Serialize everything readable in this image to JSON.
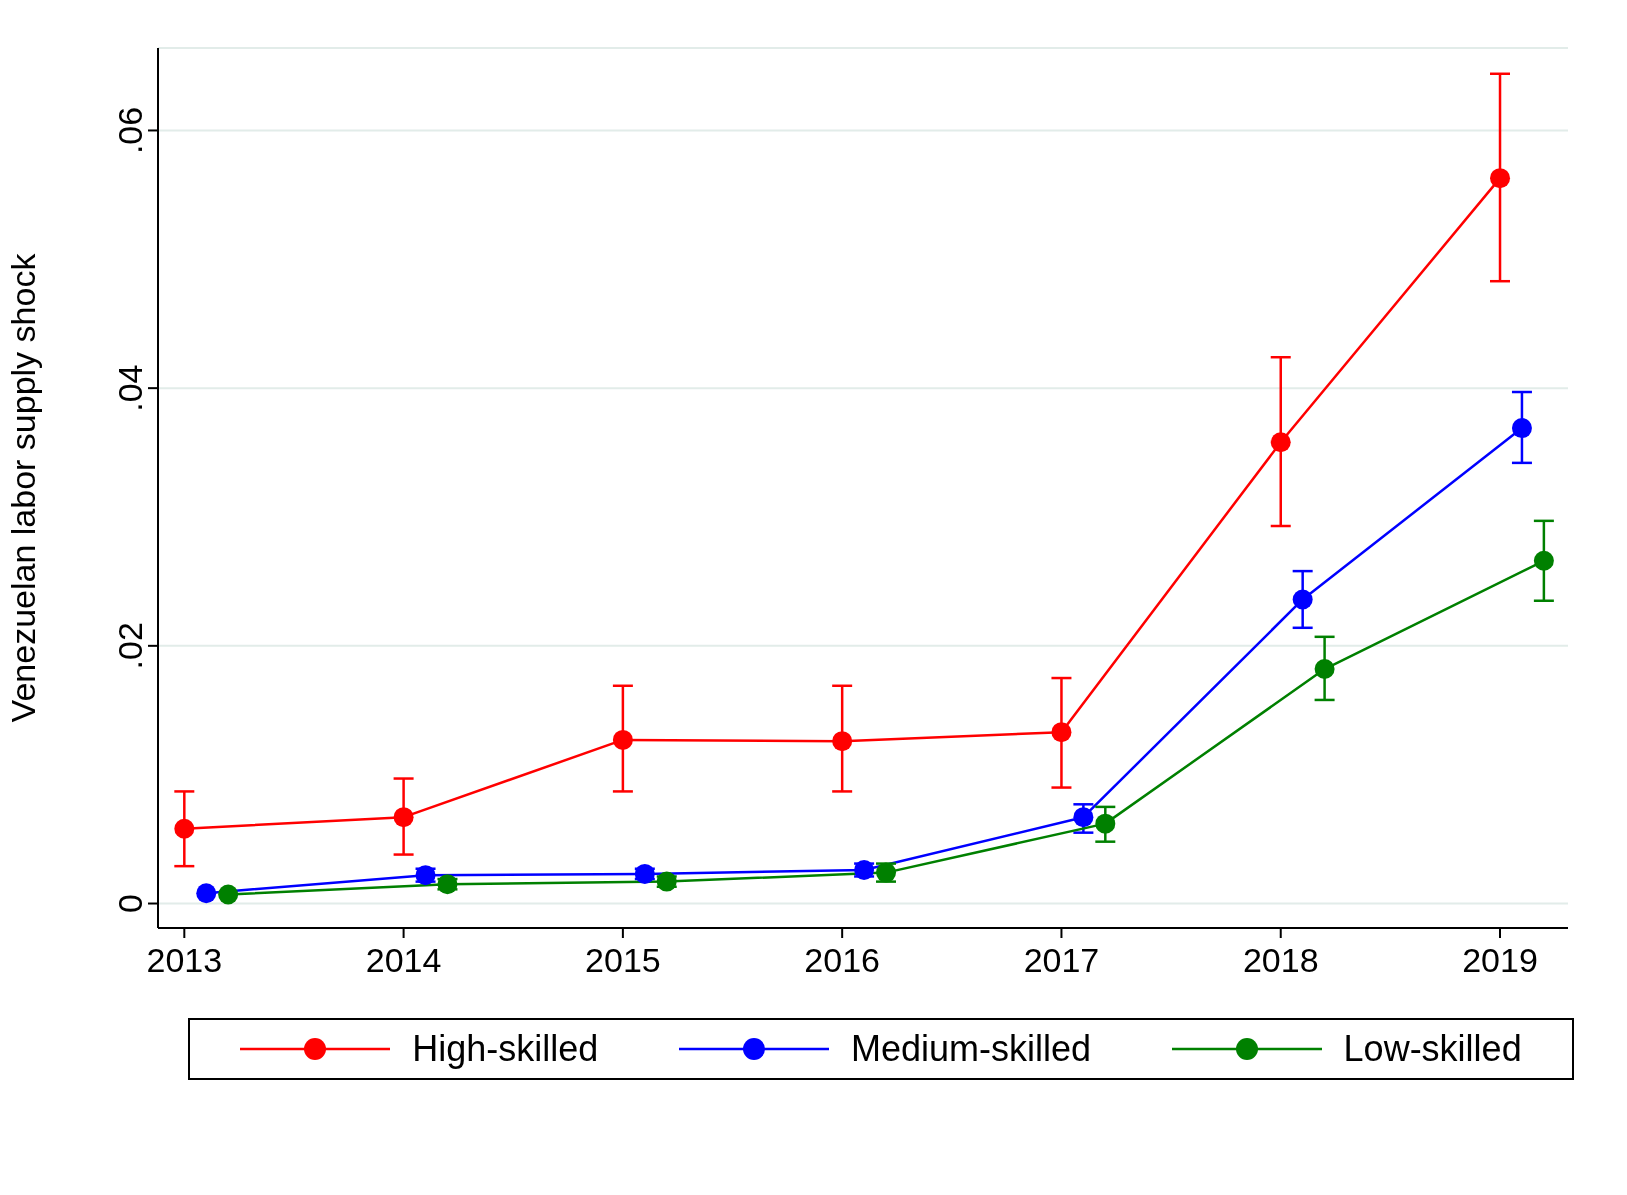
{
  "chart_data": {
    "type": "line",
    "ylabel": "Venezuelan labor supply shock",
    "xlim": [
      2012.88,
      2019.31
    ],
    "xticks": [
      2013,
      2014,
      2015,
      2016,
      2017,
      2018,
      2019
    ],
    "ylim": [
      -0.0019,
      0.0664
    ],
    "yticks": [
      {
        "value": 0,
        "label": "0"
      },
      {
        "value": 0.02,
        "label": ".02"
      },
      {
        "value": 0.04,
        "label": ".04"
      },
      {
        "value": 0.06,
        "label": ".06"
      }
    ],
    "grid": "y",
    "legend": "bottom",
    "marker": "circle",
    "line_style": "solid",
    "series": [
      {
        "name": "High-skilled",
        "color": "#ff0000",
        "x": [
          2013,
          2014,
          2015,
          2016,
          2017,
          2018,
          2019
        ],
        "values": [
          0.0058,
          0.0067,
          0.0127,
          0.0126,
          0.0133,
          0.0358,
          0.0563
        ],
        "errors": [
          [
            0.0029,
            0.0087
          ],
          [
            0.0038,
            0.0097
          ],
          [
            0.0087,
            0.0169
          ],
          [
            0.0087,
            0.0169
          ],
          [
            0.009,
            0.0175
          ],
          [
            0.0293,
            0.0424
          ],
          [
            0.0483,
            0.0644
          ]
        ]
      },
      {
        "name": "Medium-skilled",
        "color": "#0000ff",
        "x": [
          2013.1,
          2014.1,
          2015.1,
          2016.1,
          2017.1,
          2018.1,
          2019.1
        ],
        "values": [
          0.0008,
          0.0022,
          0.0023,
          0.0026,
          0.0067,
          0.0236,
          0.0369
        ],
        "errors": [
          null,
          0.0005,
          0.0004,
          0.0005,
          [
            0.0055,
            0.0077
          ],
          [
            0.0214,
            0.0258
          ],
          [
            0.0342,
            0.0397
          ]
        ]
      },
      {
        "name": "Low-skilled",
        "color": "#008000",
        "x": [
          2013.2,
          2014.2,
          2015.2,
          2016.2,
          2017.2,
          2018.2,
          2019.2
        ],
        "values": [
          0.0007,
          0.0015,
          0.0017,
          0.0024,
          0.0062,
          0.0182,
          0.0266
        ],
        "errors": [
          null,
          0.0004,
          0.0004,
          0.0007,
          [
            0.0048,
            0.0075
          ],
          [
            0.0158,
            0.0207
          ],
          [
            0.0235,
            0.0297
          ]
        ]
      }
    ]
  }
}
